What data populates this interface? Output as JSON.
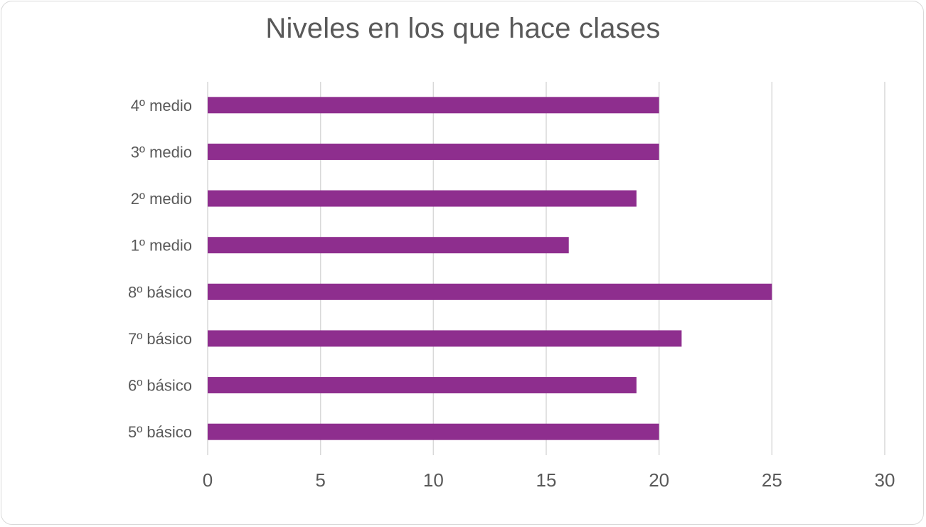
{
  "chart_data": {
    "type": "bar",
    "orientation": "horizontal",
    "title": "Niveles en los que hace clases",
    "categories": [
      "4º medio",
      "3º medio",
      "2º medio",
      "1º medio",
      "8º básico",
      "7º básico",
      "6º básico",
      "5º básico"
    ],
    "values": [
      20,
      20,
      19,
      16,
      25,
      21,
      19,
      20
    ],
    "xlim": [
      0,
      30
    ],
    "xticks": [
      "0",
      "5",
      "10",
      "15",
      "20",
      "25",
      "30"
    ],
    "grid": "vertical",
    "legend": "none",
    "bar_color": "#8E2E8E",
    "grid_color": "#d9d9d9",
    "text_color": "#595959"
  }
}
